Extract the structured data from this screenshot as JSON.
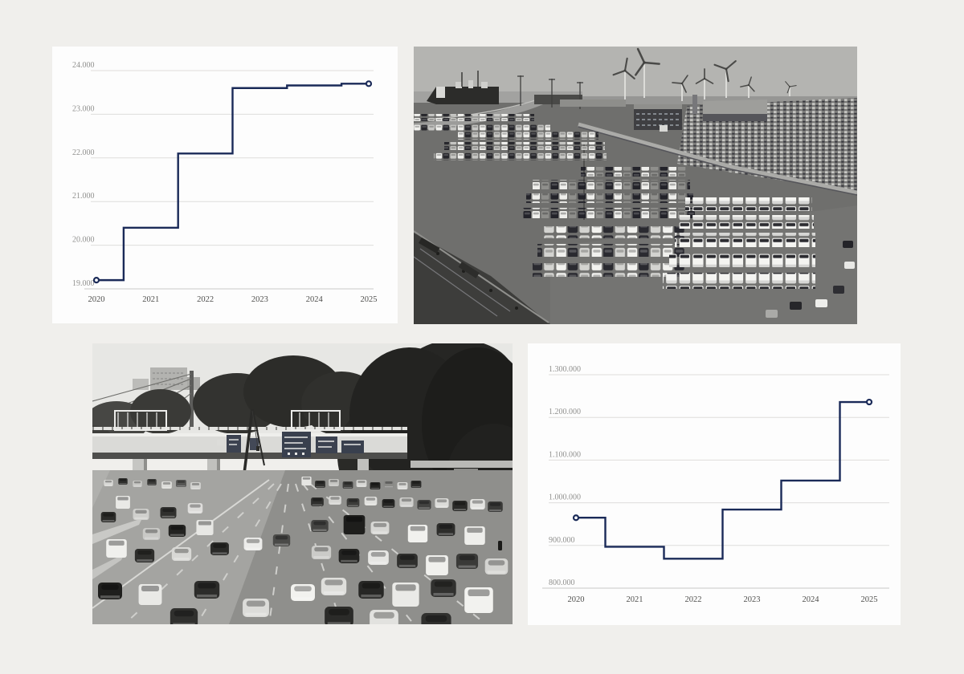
{
  "page": {
    "background_color": "#f0efec",
    "card_color": "#fdfdfd",
    "accent_color": "#1a2a58"
  },
  "chart_data": [
    {
      "type": "line",
      "step": "center",
      "title": "",
      "xlabel": "",
      "ylabel": "",
      "x": [
        2020,
        2021,
        2022,
        2023,
        2024,
        2025
      ],
      "values": [
        19200,
        20400,
        22100,
        23600,
        23660,
        23700
      ],
      "xtick_labels": [
        "2020",
        "2021",
        "2022",
        "2023",
        "2024",
        "2025"
      ],
      "ytick_values": [
        19000,
        20000,
        21000,
        22000,
        23000,
        24000
      ],
      "ytick_labels": [
        "19.000",
        "20.000",
        "21.000",
        "22.000",
        "23.000",
        "24.000"
      ],
      "ylim": [
        19000,
        24000
      ],
      "line_color": "#1a2a58",
      "grid": true,
      "legend": "none",
      "markers": "open circles at first and last point"
    },
    {
      "type": "line",
      "step": "center",
      "title": "",
      "xlabel": "",
      "ylabel": "",
      "x": [
        2020,
        2021,
        2022,
        2023,
        2024,
        2025
      ],
      "values": [
        965000,
        897000,
        869000,
        984000,
        1052000,
        1236000
      ],
      "xtick_labels": [
        "2020",
        "2021",
        "2022",
        "2023",
        "2024",
        "2025"
      ],
      "ytick_values": [
        800000,
        900000,
        1000000,
        1100000,
        1200000,
        1300000
      ],
      "ytick_labels": [
        "800.000",
        "900.000",
        "1.000.000",
        "1.100.000",
        "1.200.000",
        "1.300.000"
      ],
      "ylim": [
        800000,
        1300000
      ],
      "line_color": "#1a2a58",
      "grid": true,
      "legend": "none",
      "markers": "open circles at first and last point"
    }
  ],
  "photos": [
    {
      "name": "car-terminal-photo",
      "description": "Black-and-white aerial photo of a port vehicle terminal: rows of parked new cars and vans, warehouses, a ro-ro car-carrier ship at the quay and wind turbines on the horizon"
    },
    {
      "name": "highway-traffic-photo",
      "description": "Black-and-white photo of dense multi-lane motorway traffic below an overpass with overhead sign gantries, a construction crane and tall trees behind"
    }
  ]
}
